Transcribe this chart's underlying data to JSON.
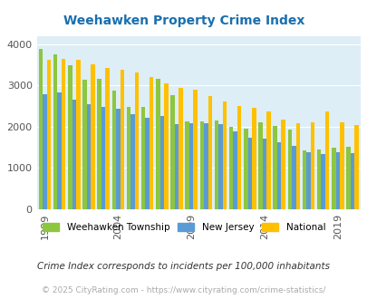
{
  "title": "Weehawken Property Crime Index",
  "title_color": "#1a6faf",
  "background_color": "#ddeef6",
  "ylabel": "",
  "xlabel": "",
  "ylim": [
    0,
    4200
  ],
  "yticks": [
    0,
    1000,
    2000,
    3000,
    4000
  ],
  "years": [
    1999,
    2000,
    2001,
    2002,
    2003,
    2004,
    2005,
    2006,
    2007,
    2008,
    2009,
    2010,
    2011,
    2012,
    2013,
    2014,
    2015,
    2016,
    2017,
    2018,
    2019,
    2020
  ],
  "weehawken": [
    3880,
    3760,
    3490,
    3130,
    3170,
    2870,
    2490,
    2480,
    3160,
    2770,
    2120,
    2130,
    2150,
    2000,
    1950,
    2100,
    2020,
    1940,
    1430,
    1440,
    1490,
    1520
  ],
  "new_jersey": [
    2780,
    2840,
    2650,
    2540,
    2490,
    2430,
    2300,
    2210,
    2260,
    2070,
    2080,
    2080,
    2070,
    1880,
    1740,
    1720,
    1620,
    1540,
    1390,
    1340,
    1380,
    1350
  ],
  "national": [
    3610,
    3640,
    3610,
    3520,
    3430,
    3380,
    3320,
    3210,
    3050,
    2940,
    2900,
    2740,
    2610,
    2510,
    2460,
    2380,
    2180,
    2090,
    2100,
    2360,
    2110,
    2050
  ],
  "color_weehawken": "#8dc63f",
  "color_nj": "#5b9bd5",
  "color_national": "#ffc000",
  "legend_label_weehawken": "Weehawken Township",
  "legend_label_nj": "New Jersey",
  "legend_label_national": "National",
  "footnote": "Crime Index corresponds to incidents per 100,000 inhabitants",
  "copyright": "© 2025 CityRating.com - https://www.cityrating.com/crime-statistics/",
  "xtick_years": [
    1999,
    2004,
    2009,
    2014,
    2019
  ]
}
